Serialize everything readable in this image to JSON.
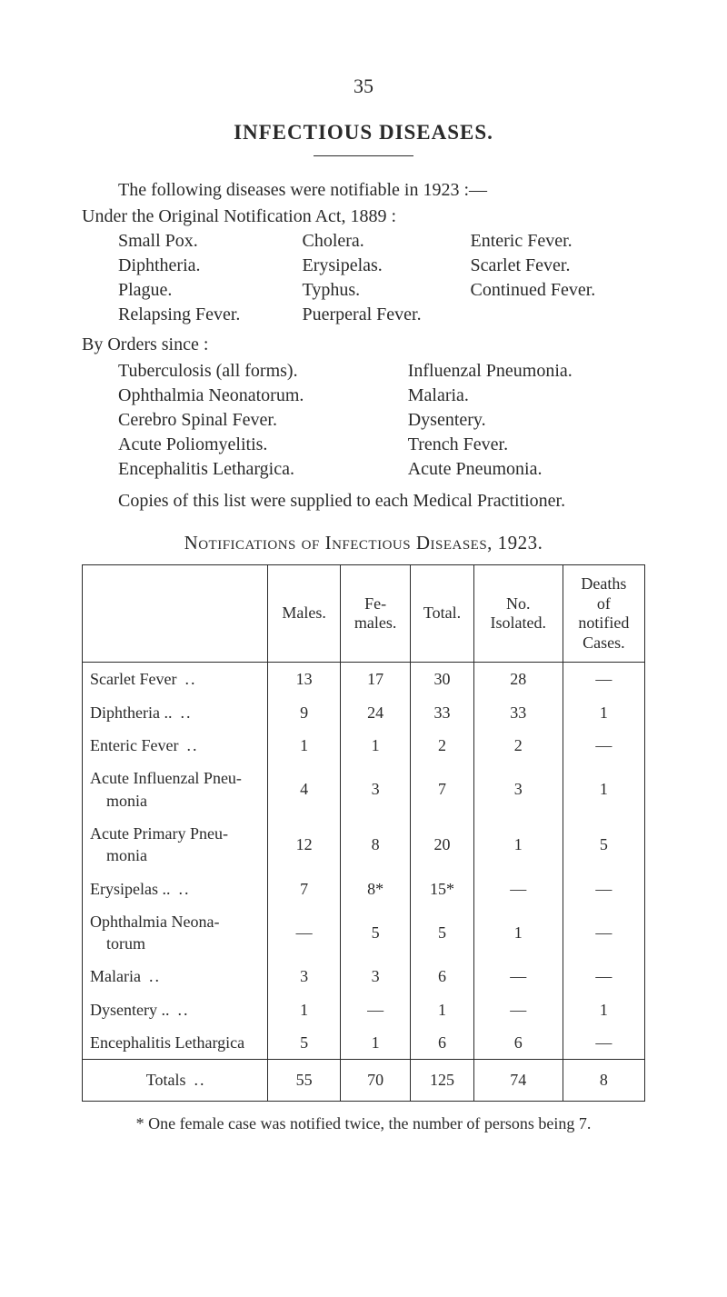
{
  "pageNumber": "35",
  "mainTitle": "INFECTIOUS DISEASES.",
  "intro1": "The following diseases were notifiable in 1923 :—",
  "intro2": "Under the Original Notification Act, 1889 :",
  "actDiseases": {
    "col1": [
      "Small Pox.",
      "Diphtheria.",
      "Plague.",
      "Relapsing Fever."
    ],
    "col2": [
      "Cholera.",
      "Erysipelas.",
      "Typhus.",
      "Puerperal Fever."
    ],
    "col3": [
      "Enteric Fever.",
      "Scarlet Fever.",
      "Continued Fever.",
      ""
    ]
  },
  "ordersHeading": "By Orders since :",
  "ordersDiseases": {
    "col1": [
      "Tuberculosis (all forms).",
      "Ophthalmia Neonatorum.",
      "Cerebro Spinal Fever.",
      "Acute Poliomyelitis.",
      "Encephalitis Lethargica."
    ],
    "col2": [
      "Influenzal Pneumonia.",
      "Malaria.",
      "Dysentery.",
      "Trench Fever.",
      "Acute Pneumonia."
    ]
  },
  "copiesPara": "Copies of this list were supplied to each Medical Practitioner.",
  "tableTitle": "Notifications of Infectious Diseases, 1923.",
  "table": {
    "columns": [
      "",
      "Males.",
      "Fe-\nmales.",
      "Total.",
      "No.\nIsolated.",
      "Deaths\nof\nnotified\nCases."
    ],
    "rows": [
      {
        "label": "Scarlet Fever",
        "dots": "..",
        "c": [
          "13",
          "17",
          "30",
          "28",
          "—"
        ]
      },
      {
        "label": "Diphtheria ..",
        "dots": "..",
        "c": [
          "9",
          "24",
          "33",
          "33",
          "1"
        ]
      },
      {
        "label": "Enteric Fever",
        "dots": "..",
        "c": [
          "1",
          "1",
          "2",
          "2",
          "—"
        ]
      },
      {
        "label": "Acute Influenzal Pneu-\nmonia",
        "dots": "",
        "c": [
          "4",
          "3",
          "7",
          "3",
          "1"
        ]
      },
      {
        "label": "Acute Primary Pneu-\nmonia",
        "dots": "",
        "c": [
          "12",
          "8",
          "20",
          "1",
          "5"
        ]
      },
      {
        "label": "Erysipelas ..",
        "dots": "..",
        "c": [
          "7",
          "8*",
          "15*",
          "—",
          "—"
        ]
      },
      {
        "label": "Ophthalmia Neona-\ntorum",
        "dots": "",
        "c": [
          "—",
          "5",
          "5",
          "1",
          "—"
        ]
      },
      {
        "label": "Malaria",
        "dots": "..",
        "c": [
          "3",
          "3",
          "6",
          "—",
          "—"
        ]
      },
      {
        "label": "Dysentery ..",
        "dots": "..",
        "c": [
          "1",
          "—",
          "1",
          "—",
          "1"
        ]
      },
      {
        "label": "Encephalitis Lethargica",
        "dots": "",
        "c": [
          "5",
          "1",
          "6",
          "6",
          "—"
        ]
      }
    ],
    "totals": {
      "label": "Totals",
      "dots": "..",
      "c": [
        "55",
        "70",
        "125",
        "74",
        "8"
      ]
    }
  },
  "footnote": "* One female case was notified twice, the number of persons being 7."
}
